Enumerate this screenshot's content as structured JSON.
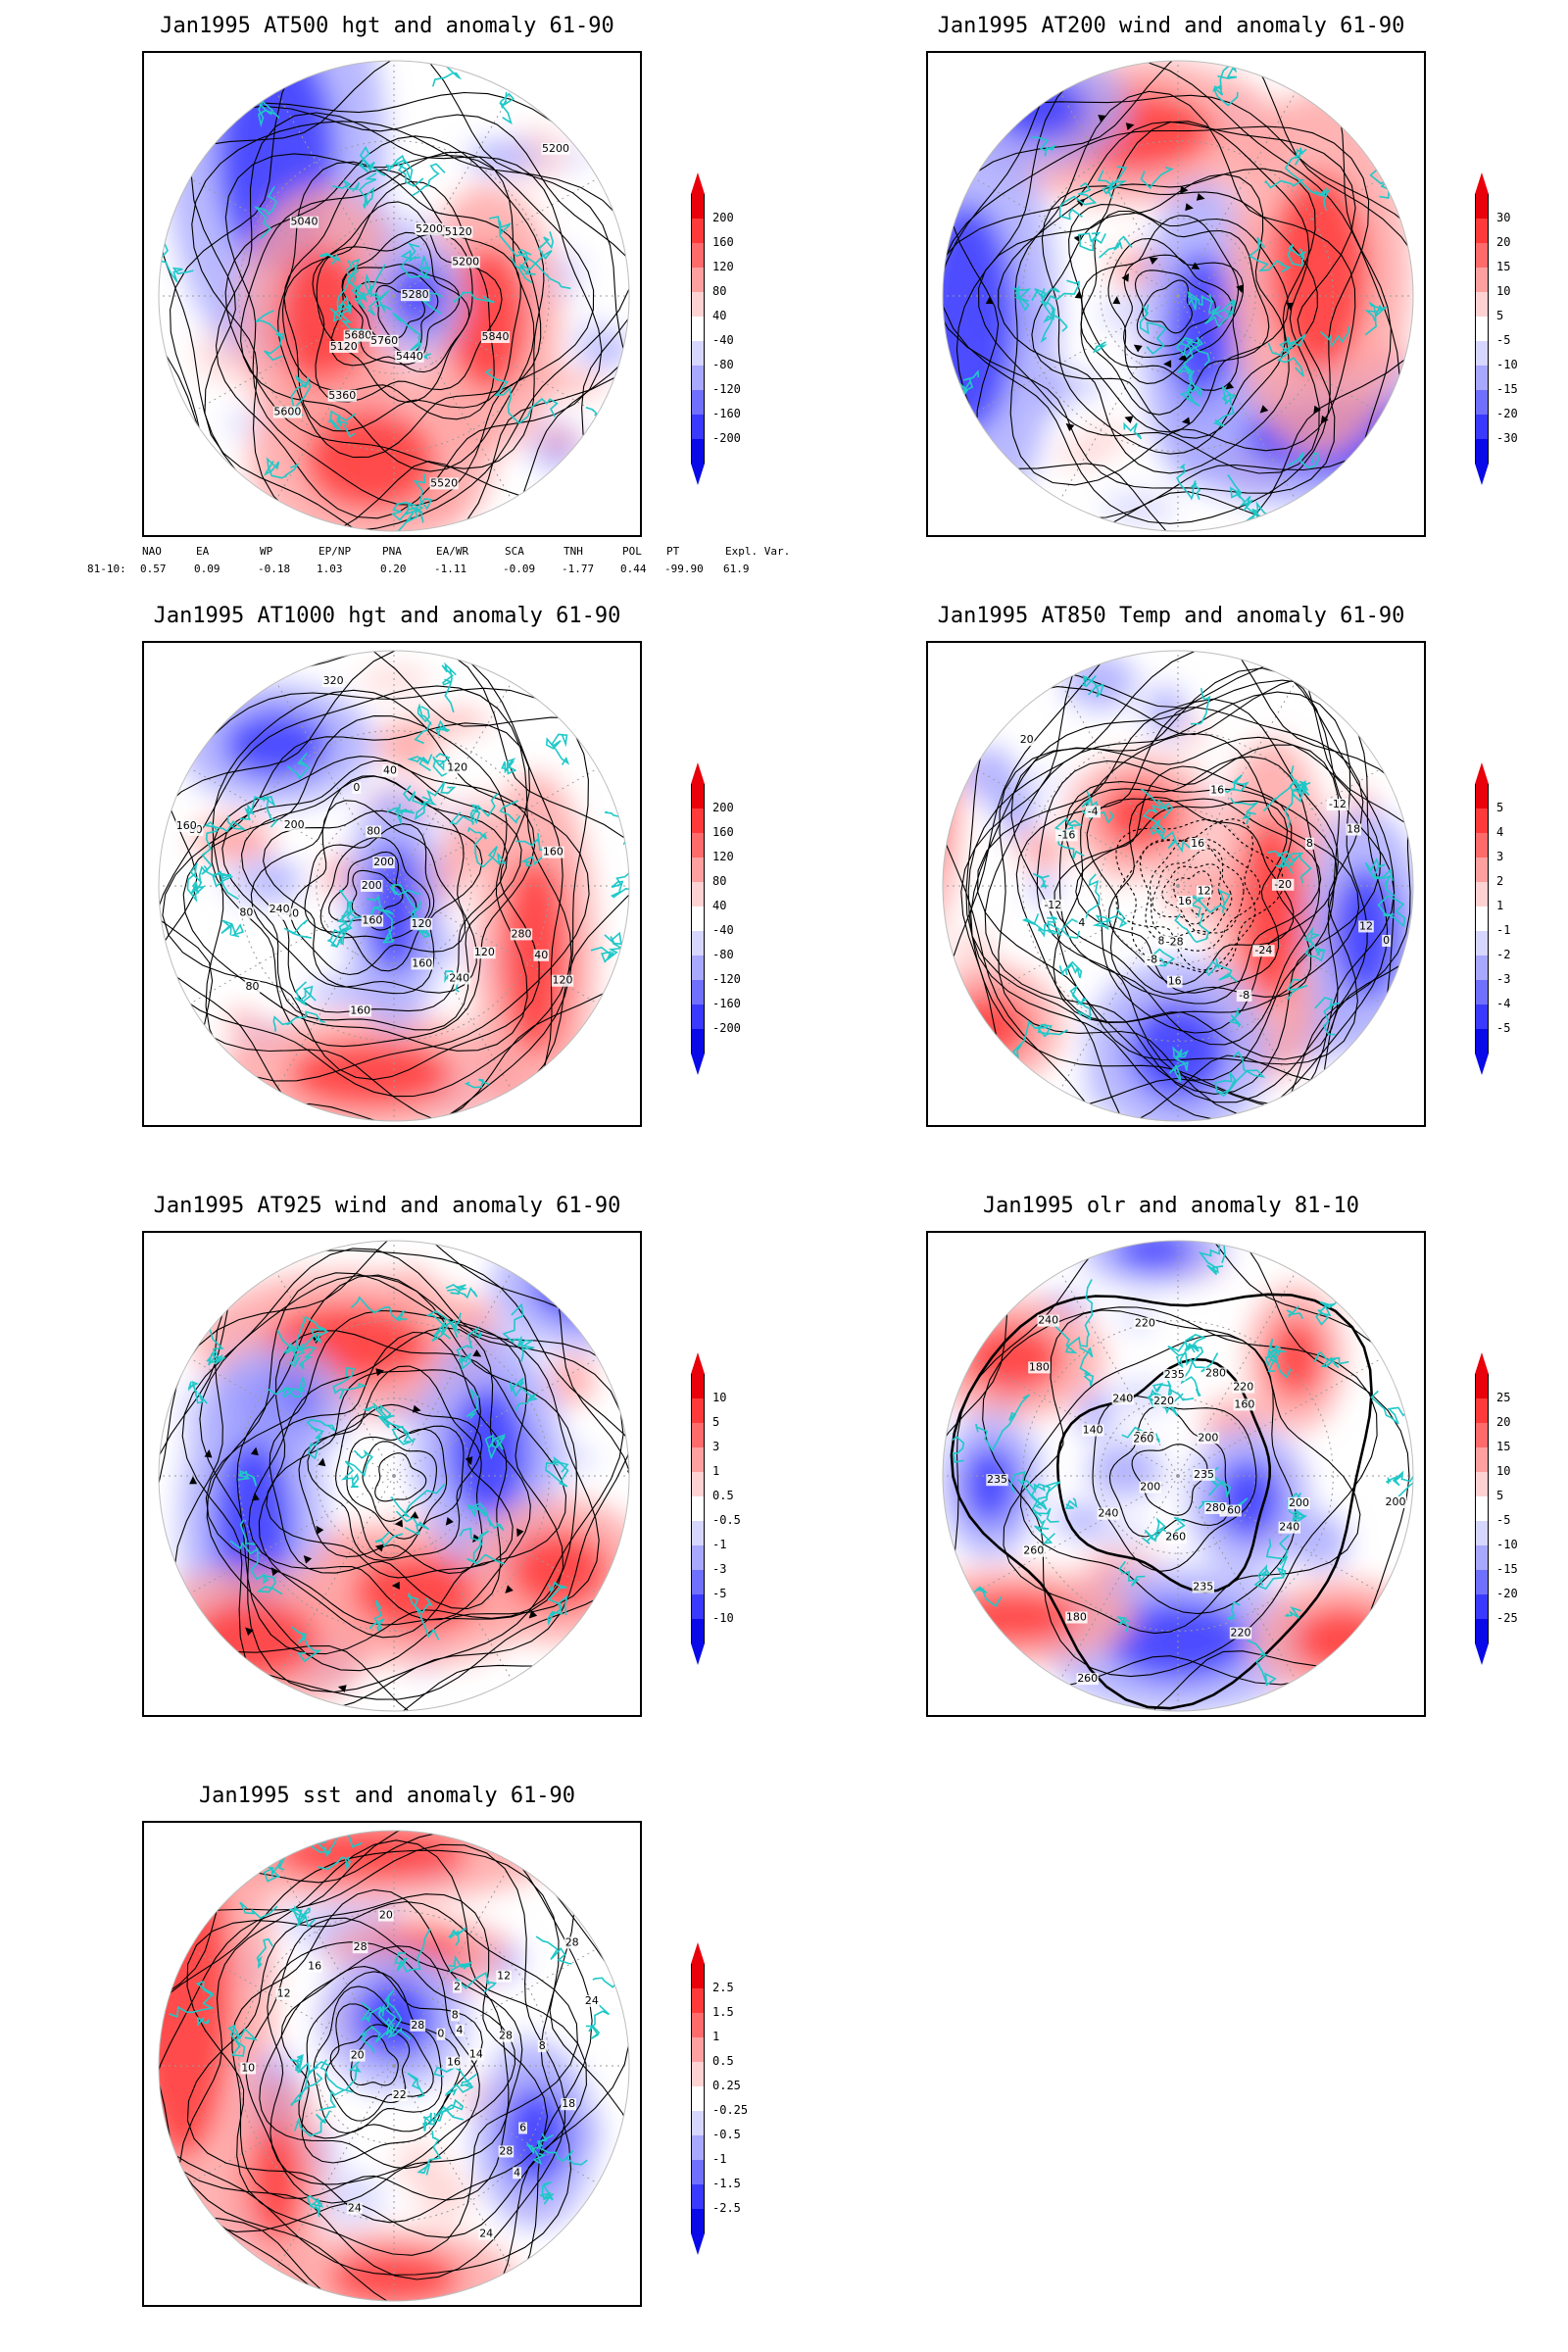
{
  "panels": [
    {
      "title": "Jan1995 AT500 hgt and anomaly 61-90",
      "contour_labels": [
        "5200",
        "5120",
        "5200",
        "5120",
        "5040",
        "5200",
        "5280",
        "5360",
        "5440",
        "5520",
        "5600",
        "5680",
        "5760",
        "5840"
      ],
      "scale": [
        "200",
        "160",
        "120",
        "80",
        "40",
        "-40",
        "-80",
        "-120",
        "-160",
        "-200"
      ]
    },
    {
      "title": "Jan1995 AT200 wind and anomaly 61-90",
      "contour_labels": [],
      "scale": [
        "30",
        "20",
        "15",
        "10",
        "5",
        "-5",
        "-10",
        "-15",
        "-20",
        "-30"
      ]
    },
    {
      "title": "Jan1995 AT1000 hgt and anomaly 61-90",
      "contour_labels": [
        "80",
        "120",
        "160",
        "-40",
        "40",
        "0",
        "80",
        "120",
        "160",
        "200",
        "160",
        "120",
        "80",
        "40",
        "240",
        "200",
        "280",
        "320",
        "160",
        "200",
        "120",
        "80",
        "160",
        "240"
      ],
      "scale": [
        "200",
        "160",
        "120",
        "80",
        "40",
        "-40",
        "-80",
        "-120",
        "-160",
        "-200"
      ]
    },
    {
      "title": "Jan1995 AT850 Temp and anomaly 61-90",
      "contour_labels": [
        "16",
        "12",
        "8",
        "16",
        "-8",
        "-12",
        "-16",
        "-20",
        "-24",
        "-28",
        "-12",
        "-8",
        "-4",
        "0",
        "4",
        "8",
        "12",
        "16",
        "20",
        "16",
        "18"
      ],
      "scale": [
        "5",
        "4",
        "3",
        "2",
        "1",
        "-1",
        "-2",
        "-3",
        "-4",
        "-5"
      ]
    },
    {
      "title": "Jan1995 AT925 wind and anomaly 61-90",
      "contour_labels": [],
      "scale": [
        "10",
        "5",
        "3",
        "1",
        "0.5",
        "-0.5",
        "-1",
        "-3",
        "-5",
        "-10"
      ]
    },
    {
      "title": "Jan1995 olr and anomaly 81-10",
      "contour_labels": [
        "200",
        "220",
        "235",
        "260",
        "200",
        "240",
        "260",
        "235",
        "260",
        "240",
        "220",
        "200",
        "180",
        "160",
        "140",
        "180",
        "200",
        "220",
        "240",
        "235",
        "260",
        "280",
        "260",
        "240",
        "220",
        "235",
        "260",
        "280"
      ],
      "scale": [
        "25",
        "20",
        "15",
        "10",
        "5",
        "-5",
        "-10",
        "-15",
        "-20",
        "-25"
      ]
    },
    {
      "title": "Jan1995 sst and anomaly 61-90",
      "contour_labels": [
        "28",
        "28",
        "24",
        "24",
        "22",
        "20",
        "18",
        "16",
        "14",
        "12",
        "10",
        "8",
        "6",
        "4",
        "2",
        "0",
        "28",
        "24",
        "20",
        "16",
        "12",
        "8",
        "4",
        "28",
        "28"
      ],
      "scale": [
        "2.5",
        "1.5",
        "1",
        "0.5",
        "0.25",
        "-0.25",
        "-0.5",
        "-1",
        "-1.5",
        "-2.5"
      ]
    }
  ],
  "indices": {
    "header": [
      "NAO",
      "EA",
      "WP",
      "EP/NP",
      "PNA",
      "EA/WR",
      "SCA",
      "TNH",
      "POL",
      "PT",
      "Expl. Var."
    ],
    "row_label": "81-10:",
    "values": [
      "0.57",
      "0.09",
      "-0.18",
      "1.03",
      "0.20",
      "-1.11",
      "-0.09",
      "-1.77",
      "0.44",
      "-99.90",
      "61.9"
    ]
  },
  "colors": {
    "red_ramp": [
      "#e8000b",
      "#ff3a3a",
      "#ff6a6a",
      "#ffa0a0",
      "#ffd2d2"
    ],
    "blue_ramp": [
      "#d6d6ff",
      "#a8a8ff",
      "#7070ff",
      "#3a3aff",
      "#0a0ae8"
    ],
    "coast": "#1fc8c8",
    "contour": "#000000"
  }
}
